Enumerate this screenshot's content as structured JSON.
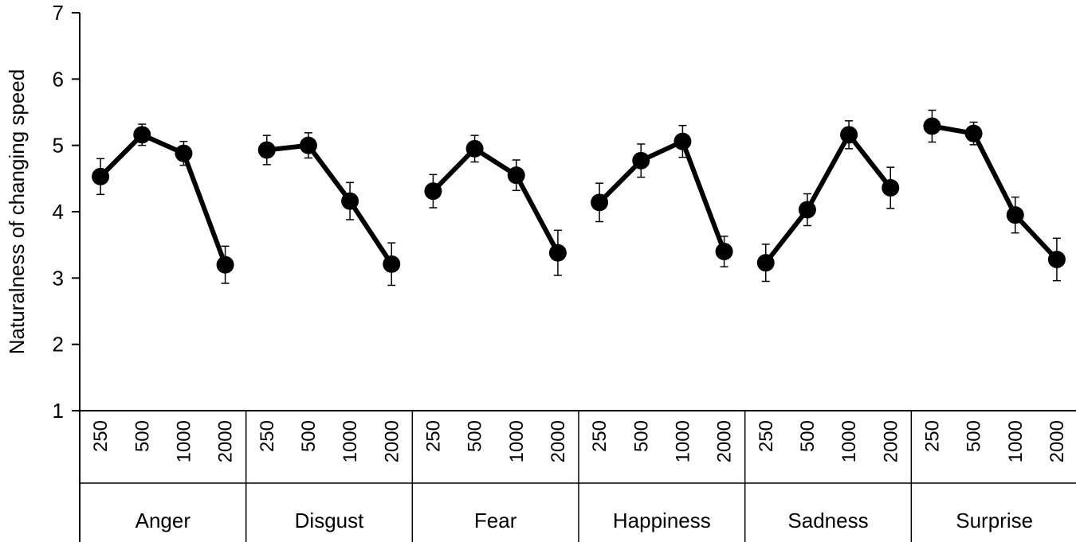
{
  "chart_data": {
    "type": "line",
    "title": "",
    "ylabel": "Naturalness of changing speed",
    "xlabel": "",
    "ylim": [
      1,
      7
    ],
    "yticks": [
      "1",
      "2",
      "3",
      "4",
      "5",
      "6",
      "7"
    ],
    "grid": false,
    "legend": "none",
    "marker_color": "#000000",
    "line_color": "#000000",
    "groups": [
      {
        "name": "Anger",
        "categories": [
          "250",
          "500",
          "1000",
          "2000"
        ],
        "values": [
          4.53,
          5.16,
          4.88,
          3.2
        ],
        "errors": [
          0.27,
          0.16,
          0.18,
          0.28
        ]
      },
      {
        "name": "Disgust",
        "categories": [
          "250",
          "500",
          "1000",
          "2000"
        ],
        "values": [
          4.93,
          5.0,
          4.16,
          3.21
        ],
        "errors": [
          0.22,
          0.19,
          0.28,
          0.32
        ]
      },
      {
        "name": "Fear",
        "categories": [
          "250",
          "500",
          "1000",
          "2000"
        ],
        "values": [
          4.31,
          4.95,
          4.55,
          3.38
        ],
        "errors": [
          0.25,
          0.2,
          0.23,
          0.34
        ]
      },
      {
        "name": "Happiness",
        "categories": [
          "250",
          "500",
          "1000",
          "2000"
        ],
        "values": [
          4.14,
          4.77,
          5.06,
          3.4
        ],
        "errors": [
          0.29,
          0.25,
          0.24,
          0.23
        ]
      },
      {
        "name": "Sadness",
        "categories": [
          "250",
          "500",
          "1000",
          "2000"
        ],
        "values": [
          3.23,
          4.03,
          5.16,
          4.36
        ],
        "errors": [
          0.28,
          0.24,
          0.21,
          0.31
        ]
      },
      {
        "name": "Surprise",
        "categories": [
          "250",
          "500",
          "1000",
          "2000"
        ],
        "values": [
          5.29,
          5.18,
          3.95,
          3.28
        ],
        "errors": [
          0.24,
          0.17,
          0.27,
          0.32
        ]
      }
    ]
  }
}
